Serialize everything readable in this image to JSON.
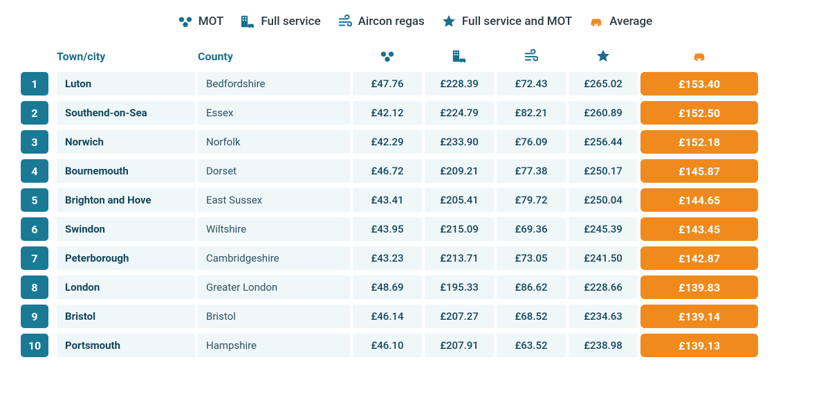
{
  "legend": {
    "mot": "MOT",
    "full_service": "Full service",
    "aircon": "Aircon regas",
    "full_service_mot": "Full service and MOT",
    "average": "Average"
  },
  "colors": {
    "teal": "#1a6e8e",
    "teal_dark": "#12465c",
    "rank_bg": "#1a7a96",
    "row_bg": "#f0f7f9",
    "avg_bg": "#f08a1d",
    "white": "#ffffff"
  },
  "columns": {
    "town": "Town/city",
    "county": "County"
  },
  "rows": [
    {
      "rank": "1",
      "town": "Luton",
      "county": "Bedfordshire",
      "mot": "£47.76",
      "full": "£228.39",
      "air": "£72.43",
      "fullmot": "£265.02",
      "avg": "£153.40"
    },
    {
      "rank": "2",
      "town": "Southend-on-Sea",
      "county": "Essex",
      "mot": "£42.12",
      "full": "£224.79",
      "air": "£82.21",
      "fullmot": "£260.89",
      "avg": "£152.50"
    },
    {
      "rank": "3",
      "town": "Norwich",
      "county": "Norfolk",
      "mot": "£42.29",
      "full": "£233.90",
      "air": "£76.09",
      "fullmot": "£256.44",
      "avg": "£152.18"
    },
    {
      "rank": "4",
      "town": "Bournemouth",
      "county": "Dorset",
      "mot": "£46.72",
      "full": "£209.21",
      "air": "£77.38",
      "fullmot": "£250.17",
      "avg": "£145.87"
    },
    {
      "rank": "5",
      "town": "Brighton and Hove",
      "county": "East Sussex",
      "mot": "£43.41",
      "full": "£205.41",
      "air": "£79.72",
      "fullmot": "£250.04",
      "avg": "£144.65"
    },
    {
      "rank": "6",
      "town": "Swindon",
      "county": "Wiltshire",
      "mot": "£43.95",
      "full": "£215.09",
      "air": "£69.36",
      "fullmot": "£245.39",
      "avg": "£143.45"
    },
    {
      "rank": "7",
      "town": "Peterborough",
      "county": "Cambridgeshire",
      "mot": "£43.23",
      "full": "£213.71",
      "air": "£73.05",
      "fullmot": "£241.50",
      "avg": "£142.87"
    },
    {
      "rank": "8",
      "town": "London",
      "county": "Greater London",
      "mot": "£48.69",
      "full": "£195.33",
      "air": "£86.62",
      "fullmot": "£228.66",
      "avg": "£139.83"
    },
    {
      "rank": "9",
      "town": "Bristol",
      "county": "Bristol",
      "mot": "£46.14",
      "full": "£207.27",
      "air": "£68.52",
      "fullmot": "£234.63",
      "avg": "£139.14"
    },
    {
      "rank": "10",
      "town": "Portsmouth",
      "county": "Hampshire",
      "mot": "£46.10",
      "full": "£207.91",
      "air": "£63.52",
      "fullmot": "£238.98",
      "avg": "£139.13"
    }
  ]
}
